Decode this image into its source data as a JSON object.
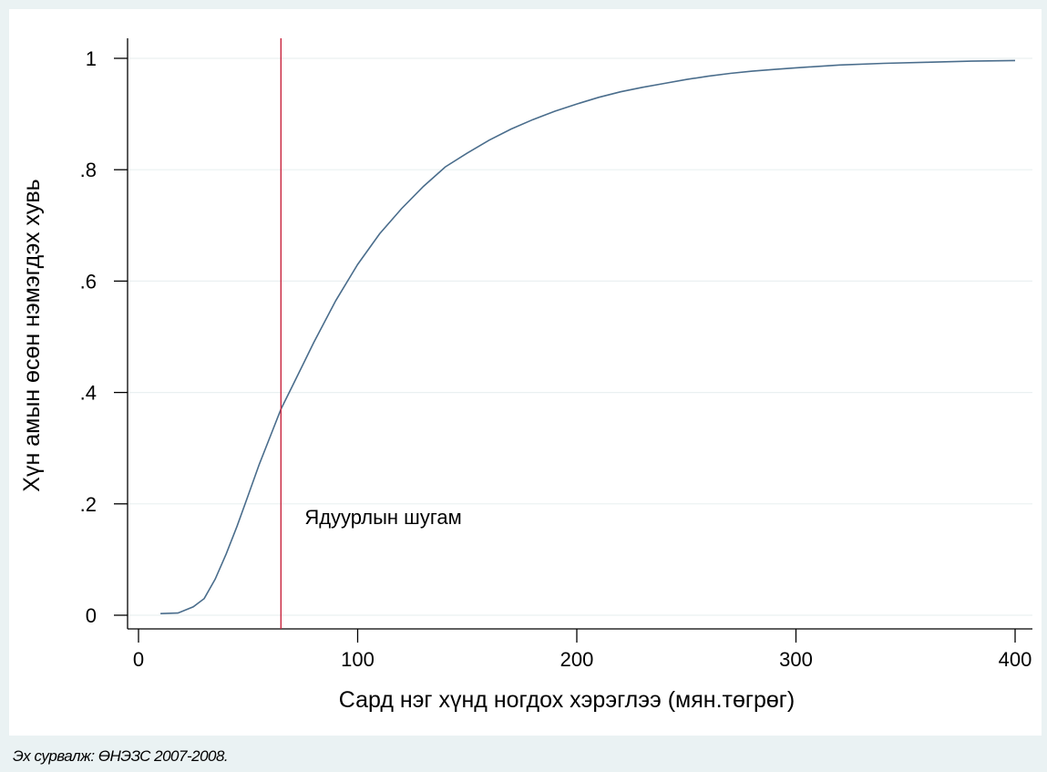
{
  "chart_data": {
    "type": "line",
    "title": "",
    "xlabel": "Сард нэг хүнд ногдох хэрэглээ (мян.төгрөг)",
    "ylabel": "Хүн амын өсөн нэмэгдэх хувь",
    "xlim": [
      0,
      400
    ],
    "ylim": [
      0,
      1
    ],
    "x_ticks": [
      0,
      100,
      200,
      300,
      400
    ],
    "x_tick_labels": [
      "0",
      "100",
      "200",
      "300",
      "400"
    ],
    "y_ticks": [
      0,
      0.2,
      0.4,
      0.6,
      0.8,
      1
    ],
    "y_tick_labels": [
      "0",
      ".2",
      ".4",
      ".6",
      ".8",
      "1"
    ],
    "grid": true,
    "series": [
      {
        "color": "#4a6d8c",
        "x": [
          10,
          18,
          25,
          30,
          35,
          40,
          45,
          50,
          55,
          60,
          65,
          70,
          75,
          80,
          90,
          100,
          110,
          120,
          130,
          140,
          150,
          160,
          170,
          180,
          190,
          200,
          210,
          220,
          230,
          240,
          250,
          260,
          270,
          280,
          290,
          300,
          320,
          340,
          360,
          380,
          400
        ],
        "y": [
          0.003,
          0.004,
          0.015,
          0.03,
          0.065,
          0.11,
          0.16,
          0.215,
          0.27,
          0.32,
          0.37,
          0.41,
          0.45,
          0.49,
          0.565,
          0.63,
          0.685,
          0.73,
          0.77,
          0.805,
          0.83,
          0.853,
          0.873,
          0.89,
          0.905,
          0.918,
          0.93,
          0.94,
          0.948,
          0.955,
          0.962,
          0.968,
          0.973,
          0.977,
          0.98,
          0.983,
          0.988,
          0.991,
          0.993,
          0.995,
          0.996
        ]
      }
    ],
    "reference_lines": [
      {
        "orientation": "vertical",
        "x": 65,
        "label": "Ядуурлын шугам",
        "color": "#c8233c"
      }
    ]
  },
  "footer": {
    "source": "Эх сурвалж: ӨНЭЗС 2007-2008."
  }
}
